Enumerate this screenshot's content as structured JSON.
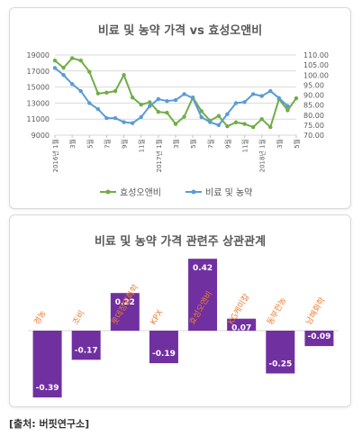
{
  "chart_data": [
    {
      "type": "line",
      "title": "비료 및 농약 가격 vs 효성오앤비",
      "x_tick_labels": [
        "2016년 1월",
        "3월",
        "5월",
        "7월",
        "9월",
        "11월",
        "2017년 1월",
        "3월",
        "5월",
        "7월",
        "9월",
        "11월",
        "2018년 1월",
        "3월",
        "5월"
      ],
      "left_axis": {
        "ylim": [
          9000,
          19000
        ],
        "ticks": [
          "19000",
          "17000",
          "15000",
          "13000",
          "11000",
          "9000"
        ]
      },
      "right_axis": {
        "ylim": [
          70,
          110
        ],
        "ticks": [
          "110.00",
          "105.00",
          "100.00",
          "95.00",
          "90.00",
          "85.00",
          "80.00",
          "75.00",
          "70.00"
        ]
      },
      "series": [
        {
          "name": "효성오앤비",
          "axis": "left",
          "color": "#70ad47",
          "x": [
            0,
            1,
            2,
            3,
            4,
            5,
            6,
            7,
            8,
            9,
            10,
            11,
            12,
            13,
            14,
            15,
            16,
            17,
            18,
            19,
            20,
            21,
            22,
            23,
            24,
            25,
            26,
            27,
            28
          ],
          "values": [
            18300,
            17400,
            18600,
            18300,
            16900,
            14200,
            14300,
            14500,
            16500,
            13700,
            12800,
            13100,
            11900,
            11800,
            10400,
            11300,
            13700,
            12000,
            10800,
            11400,
            10100,
            10600,
            10400,
            10000,
            11000,
            10000,
            13500,
            12100,
            13600
          ]
        },
        {
          "name": "비료 및 농약",
          "axis": "right",
          "color": "#5b9bd5",
          "x": [
            0,
            1,
            2,
            3,
            4,
            5,
            6,
            7,
            8,
            9,
            10,
            11,
            12,
            13,
            14,
            15,
            16,
            17,
            18,
            19,
            20,
            21,
            22,
            23,
            24,
            25,
            26,
            27,
            28
          ],
          "values": [
            103.5,
            100.0,
            95.5,
            92.0,
            86.0,
            83.0,
            78.5,
            78.5,
            76.5,
            76.0,
            79.0,
            84.5,
            88.0,
            87.0,
            87.5,
            90.5,
            88.5,
            79.0,
            76.5,
            75.0,
            80.5,
            86.0,
            86.5,
            90.5,
            89.5,
            92.0,
            88.5,
            84.5,
            null
          ]
        }
      ],
      "legend_position": "bottom",
      "grid": "horizontal"
    },
    {
      "type": "bar",
      "title": "비료 및 농약 가격 관련주 상관관계",
      "categories": [
        "경농",
        "조비",
        "롯데정밀화학",
        "KPX",
        "효성오앤비",
        "KG케미칼",
        "동부한농",
        "남해화학"
      ],
      "values": [
        -0.39,
        -0.17,
        0.22,
        -0.19,
        0.42,
        0.07,
        -0.25,
        -0.09
      ],
      "value_labels": [
        "-0.39",
        "-0.17",
        "0.22",
        "-0.19",
        "0.42",
        "0.07",
        "-0.25",
        "-0.09"
      ],
      "bar_color": "#7030a0",
      "category_label_color": "#ed7d31",
      "ylim": [
        -0.45,
        0.5
      ]
    }
  ],
  "source": "[출처: 버핏연구소]"
}
